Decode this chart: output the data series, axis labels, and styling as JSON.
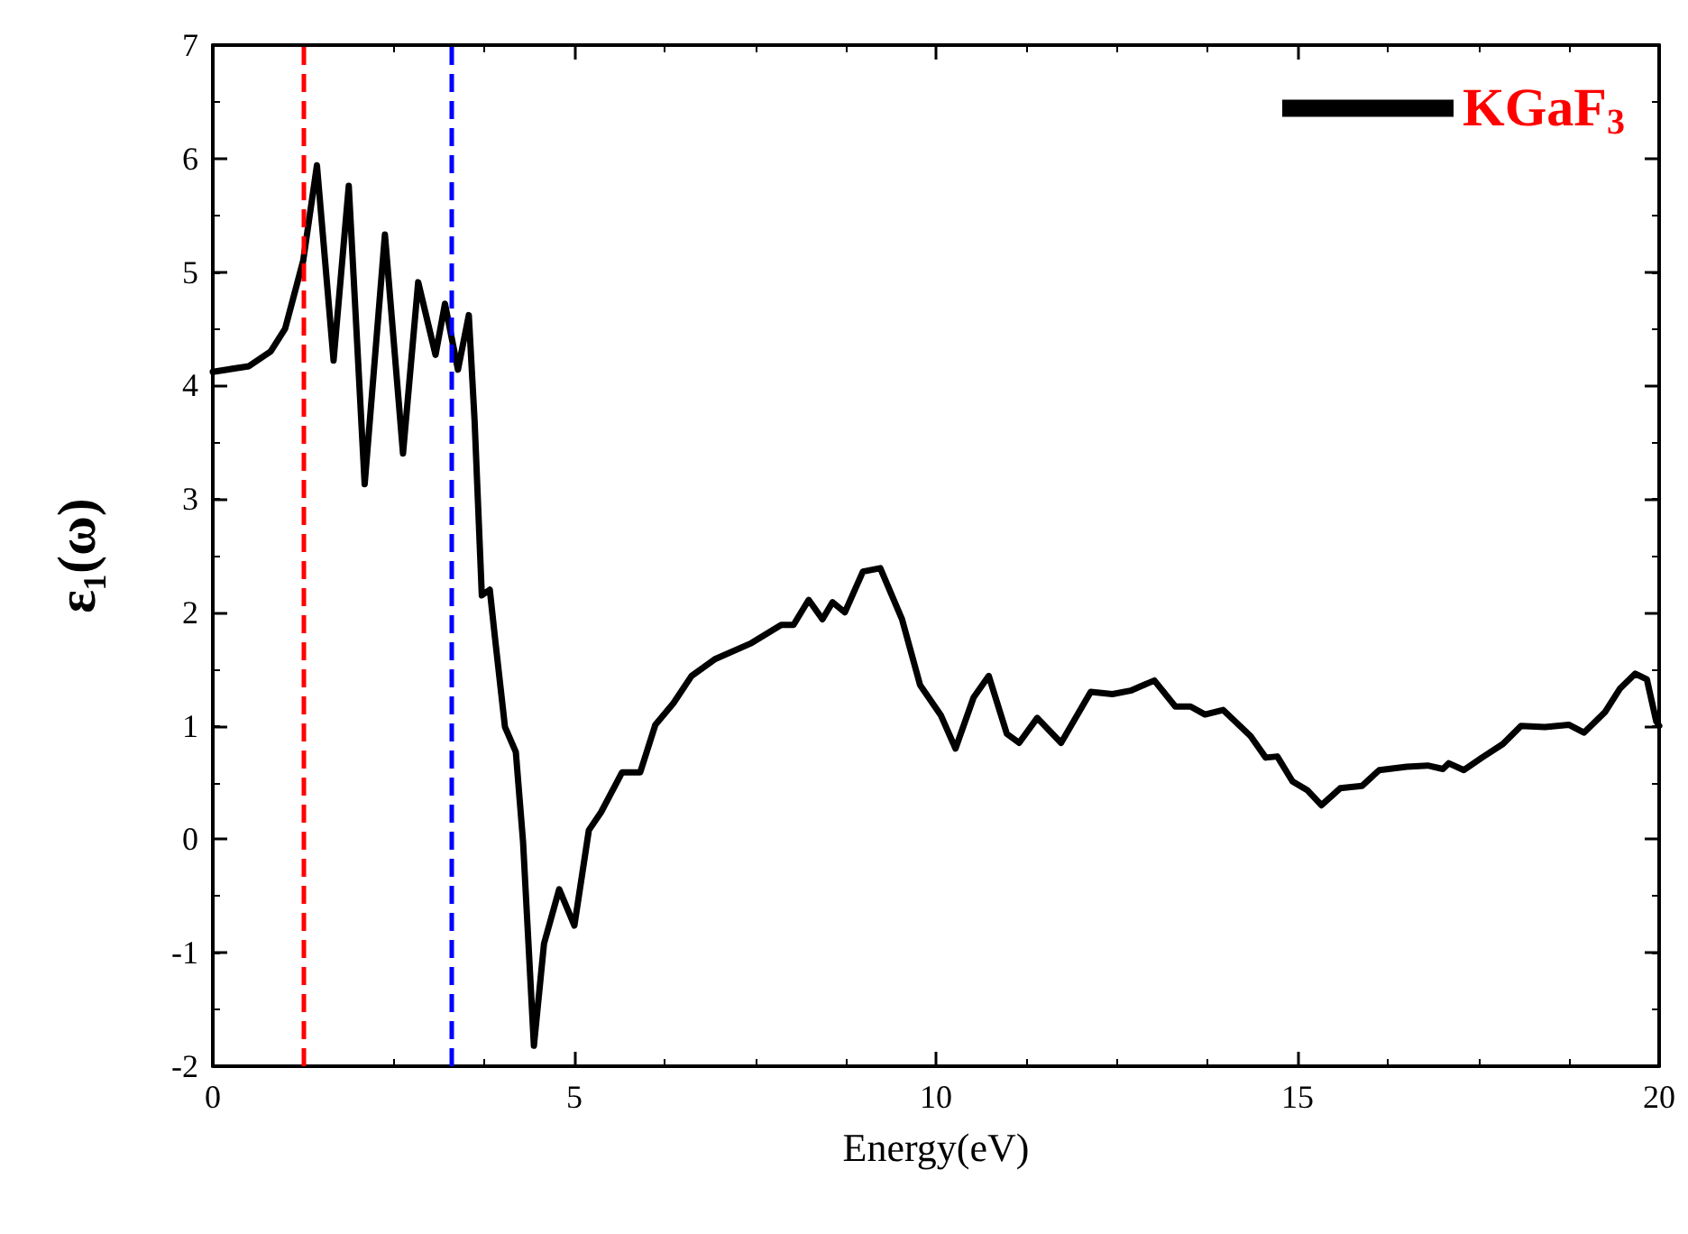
{
  "chart_data": {
    "type": "line",
    "xlabel": "Energy(eV)",
    "ylabel": "ε₁(ω)",
    "x": [
      0,
      0.5,
      0.8,
      1.0,
      1.25,
      1.44,
      1.67,
      1.88,
      2.1,
      2.38,
      2.63,
      2.84,
      3.08,
      3.21,
      3.39,
      3.54,
      3.62,
      3.72,
      3.83,
      3.91,
      4.04,
      4.19,
      4.29,
      4.44,
      4.58,
      4.79,
      5.0,
      5.2,
      5.37,
      5.66,
      5.91,
      6.12,
      6.37,
      6.62,
      6.95,
      7.45,
      7.86,
      8.03,
      8.24,
      8.43,
      8.57,
      8.74,
      8.99,
      9.23,
      9.53,
      9.78,
      10.07,
      10.27,
      10.52,
      10.73,
      10.98,
      11.15,
      11.4,
      11.73,
      12.14,
      12.44,
      12.69,
      13.02,
      13.31,
      13.52,
      13.72,
      13.97,
      14.35,
      14.56,
      14.72,
      14.93,
      15.14,
      15.33,
      15.59,
      15.89,
      16.13,
      16.51,
      16.8,
      17.01,
      17.09,
      17.3,
      17.55,
      17.84,
      18.09,
      18.42,
      18.75,
      18.96,
      19.25,
      19.46,
      19.67,
      19.83,
      19.96,
      20
    ],
    "series": [
      {
        "name": "KGaF$_{3}$",
        "color": "#000000",
        "values": [
          4.12,
          4.17,
          4.3,
          4.5,
          5.1,
          5.94,
          4.22,
          5.76,
          3.13,
          5.33,
          3.4,
          4.91,
          4.27,
          4.72,
          4.14,
          4.62,
          3.69,
          2.15,
          2.2,
          1.73,
          0.99,
          0.77,
          -0.02,
          -1.82,
          -0.92,
          -0.44,
          -0.76,
          0.08,
          0.24,
          0.59,
          0.59,
          1.01,
          1.2,
          1.44,
          1.59,
          1.73,
          1.89,
          1.89,
          2.11,
          1.94,
          2.09,
          2.0,
          2.36,
          2.39,
          1.94,
          1.36,
          1.09,
          0.8,
          1.25,
          1.44,
          0.93,
          0.85,
          1.07,
          0.85,
          1.3,
          1.28,
          1.31,
          1.4,
          1.17,
          1.17,
          1.1,
          1.14,
          0.91,
          0.72,
          0.73,
          0.51,
          0.43,
          0.3,
          0.45,
          0.47,
          0.61,
          0.64,
          0.65,
          0.62,
          0.67,
          0.61,
          0.72,
          0.84,
          1.0,
          0.99,
          1.01,
          0.94,
          1.12,
          1.33,
          1.46,
          1.41,
          1.04,
          1.0
        ]
      }
    ],
    "xlim": [
      0,
      20
    ],
    "xticks": [
      0,
      5,
      10,
      15,
      20
    ],
    "ylim": [
      -2,
      7
    ],
    "yticks": [
      -2,
      -1,
      0,
      1,
      2,
      3,
      4,
      5,
      6,
      7
    ],
    "ref_lines": [
      {
        "axis": "x",
        "value": 1.25,
        "color": "#ff0000",
        "line_style": "dashed"
      },
      {
        "axis": "x",
        "value": 3.29,
        "color": "#0000ff",
        "line_style": "dashed"
      }
    ],
    "legend": "top right",
    "grid": false,
    "marker": "none",
    "line_style": "solid"
  }
}
